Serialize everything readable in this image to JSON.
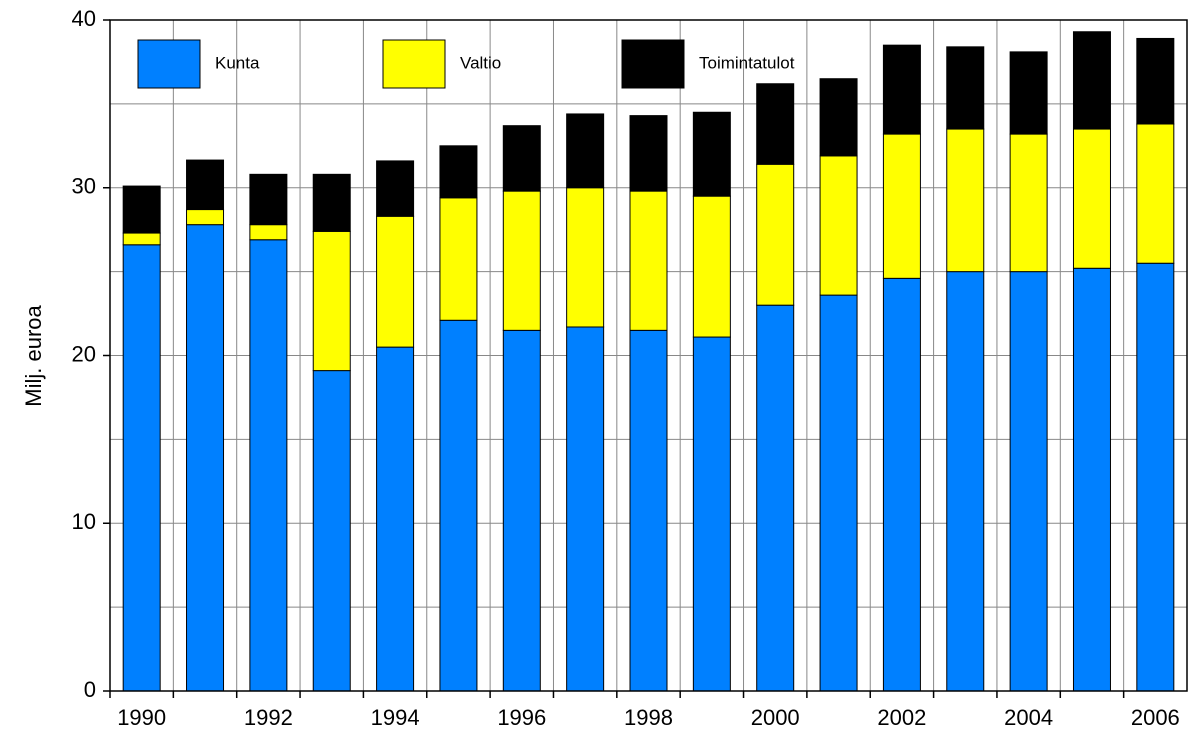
{
  "chart_data": {
    "type": "stacked_bar",
    "y_label": "Milj. euroa",
    "categories": [
      "1990",
      null,
      "1992",
      null,
      "1994",
      null,
      "1996",
      null,
      "1998",
      null,
      "2000",
      null,
      "2002",
      null,
      "2004",
      null,
      "2006"
    ],
    "series": [
      {
        "name": "Kunta",
        "color": "#0080ff",
        "values": [
          26.6,
          27.8,
          26.9,
          19.1,
          20.5,
          22.1,
          21.5,
          21.7,
          21.5,
          21.1,
          23.0,
          23.6,
          24.6,
          25.0,
          25.0,
          25.2,
          25.5
        ]
      },
      {
        "name": "Valtio",
        "color": "#ffff00",
        "values": [
          0.7,
          0.9,
          0.9,
          8.3,
          7.8,
          7.3,
          8.3,
          8.3,
          8.3,
          8.4,
          8.4,
          8.3,
          8.6,
          8.5,
          8.2,
          8.3,
          8.3
        ]
      },
      {
        "name": "Toimintatulot",
        "color": "#000000",
        "values": [
          2.8,
          2.95,
          3.0,
          3.4,
          3.3,
          3.1,
          3.9,
          4.4,
          4.5,
          5.0,
          4.8,
          4.6,
          5.3,
          4.9,
          4.9,
          5.8,
          5.1
        ]
      }
    ],
    "ylim": [
      0,
      40
    ],
    "yticks": [
      0,
      10,
      20,
      30,
      40
    ],
    "minor_yticks": [
      5,
      15,
      25,
      35
    ],
    "grid": true
  }
}
